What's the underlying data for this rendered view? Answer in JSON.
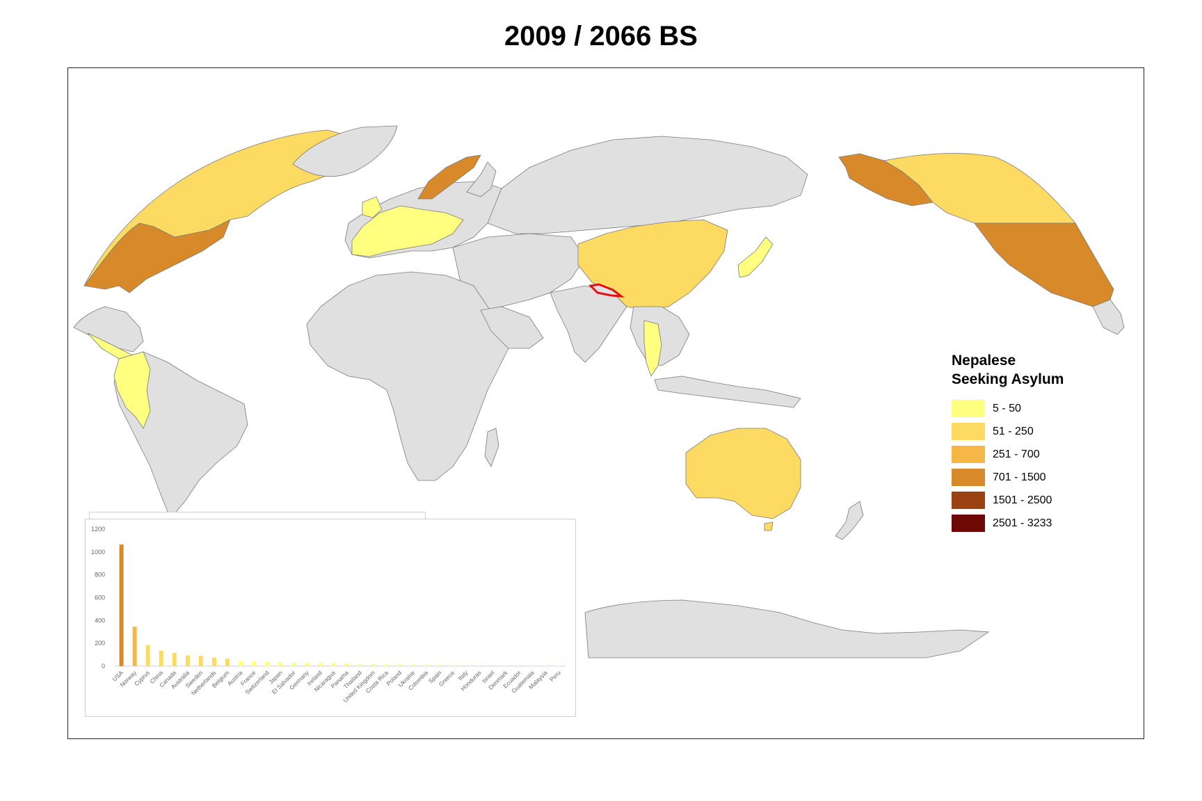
{
  "title": "2009 / 2066 BS",
  "legend": {
    "title_line1": "Nepalese",
    "title_line2": "Seeking Asylum",
    "classes": [
      {
        "label": "5 - 50",
        "color": "#ffff80"
      },
      {
        "label": "51 - 250",
        "color": "#fddb63"
      },
      {
        "label": "251 - 700",
        "color": "#f5b846"
      },
      {
        "label": "701 - 1500",
        "color": "#d88a2b"
      },
      {
        "label": "1501 - 2500",
        "color": "#9c4212"
      },
      {
        "label": "2501 - 3233",
        "color": "#6e0a06"
      }
    ]
  },
  "map_colors": {
    "ocean": "#ffffff",
    "land_no_data": "#e0e0e0",
    "border": "#7a7a7a",
    "highlight_outline": "#e01010"
  },
  "chart_data": {
    "type": "bar",
    "categories": [
      "USA",
      "Norway",
      "Cyprus",
      "China",
      "Canada",
      "Australia",
      "Sweden",
      "Netherlands",
      "Belgium",
      "Austria",
      "France",
      "Switzerland",
      "Japan",
      "El Salvador",
      "Germany",
      "Ireland",
      "Nicaragua",
      "Panama",
      "Thailand",
      "United Kingdom",
      "Costa Rica",
      "Poland",
      "Ukraine",
      "Colombia",
      "Spain",
      "Greece",
      "Italy",
      "Honduras",
      "Israel",
      "Denmark",
      "Ecuador",
      "Guatemala",
      "Malaysia",
      "Peru"
    ],
    "values": [
      1065,
      345,
      185,
      135,
      115,
      95,
      90,
      75,
      65,
      45,
      40,
      38,
      35,
      30,
      28,
      26,
      24,
      22,
      20,
      18,
      16,
      14,
      12,
      10,
      9,
      8,
      7,
      6,
      5,
      5,
      5,
      5,
      5,
      5
    ],
    "yticks": [
      0,
      200,
      400,
      600,
      800,
      1000,
      1200
    ],
    "ylim": [
      0,
      1200
    ],
    "xlabel": "",
    "ylabel": ""
  }
}
